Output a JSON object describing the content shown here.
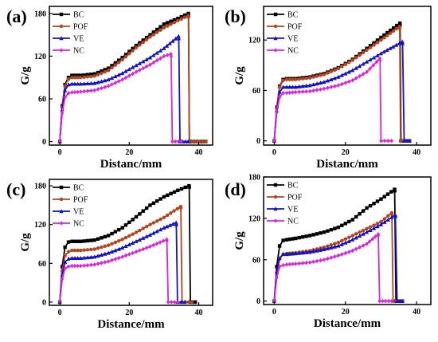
{
  "chart_data": [
    {
      "type": "line",
      "panel_label": "(a)",
      "xlabel": "Distanc/mm",
      "ylabel": "G/g",
      "xlim": [
        -3,
        44
      ],
      "ylim": [
        -5,
        190
      ],
      "xticks": [
        0,
        20,
        40
      ],
      "yticks": [
        0,
        60,
        120,
        180
      ],
      "grid": false,
      "legend_position": "top-right",
      "series": [
        {
          "name": "BC",
          "color": "#000000",
          "marker": "square",
          "x": [
            0,
            0.7,
            1.5,
            2.5,
            3.5,
            6,
            10,
            14,
            18,
            22,
            26,
            30,
            34,
            37.0,
            37.05,
            37.3,
            42
          ],
          "y": [
            0,
            50,
            80,
            90,
            93,
            93,
            95,
            103,
            118,
            135,
            150,
            165,
            173,
            180,
            178,
            0,
            0
          ]
        },
        {
          "name": "POF",
          "color": "#b5441c",
          "marker": "circle",
          "x": [
            0,
            0.7,
            1.5,
            2.5,
            3.5,
            6,
            10,
            14,
            18,
            22,
            26,
            30,
            34,
            37.0,
            37.05,
            37.3,
            42
          ],
          "y": [
            0,
            48,
            78,
            88,
            90,
            90,
            92,
            100,
            115,
            132,
            147,
            160,
            170,
            177,
            175,
            0,
            0
          ]
        },
        {
          "name": "VE",
          "color": "#1111cc",
          "marker": "triangle",
          "x": [
            0,
            0.7,
            1.5,
            2.5,
            3.5,
            6,
            10,
            14,
            18,
            22,
            26,
            30,
            34.2,
            34.25,
            34.6,
            37
          ],
          "y": [
            0,
            45,
            72,
            80,
            81,
            81,
            82,
            87,
            96,
            107,
            118,
            131,
            148,
            145,
            0,
            0
          ]
        },
        {
          "name": "NC",
          "color": "#dd22dd",
          "marker": "diamond",
          "x": [
            0,
            0.7,
            1.5,
            2.5,
            3.5,
            6,
            10,
            14,
            18,
            22,
            26,
            30,
            32.0,
            32.05,
            32.4,
            35
          ],
          "y": [
            0,
            40,
            62,
            68,
            69,
            70,
            72,
            78,
            87,
            98,
            108,
            120,
            123,
            120,
            0,
            0
          ]
        }
      ]
    },
    {
      "type": "line",
      "panel_label": "(b)",
      "xlabel": "Distanc/mm",
      "ylabel": "G/g",
      "xlim": [
        -3,
        44
      ],
      "ylim": [
        -5,
        160
      ],
      "xticks": [
        0,
        20,
        40
      ],
      "yticks": [
        0,
        60,
        120
      ],
      "grid": false,
      "legend_position": "top-right",
      "series": [
        {
          "name": "BC",
          "color": "#000000",
          "marker": "square",
          "x": [
            0,
            0.7,
            1.5,
            2.5,
            3.5,
            6,
            10,
            14,
            18,
            22,
            26,
            30,
            35.3,
            35.35,
            35.6,
            38
          ],
          "y": [
            0,
            40,
            65,
            73,
            74,
            74,
            76,
            80,
            87,
            97,
            110,
            123,
            140,
            138,
            0,
            0
          ]
        },
        {
          "name": "POF",
          "color": "#b5441c",
          "marker": "circle",
          "x": [
            0,
            0.7,
            1.5,
            2.5,
            3.5,
            6,
            10,
            14,
            18,
            22,
            26,
            30,
            35.2,
            35.25,
            35.5,
            38
          ],
          "y": [
            0,
            40,
            64,
            72,
            73,
            73,
            75,
            79,
            86,
            96,
            108,
            120,
            136,
            134,
            0,
            0
          ]
        },
        {
          "name": "VE",
          "color": "#1111cc",
          "marker": "triangle",
          "x": [
            0,
            0.7,
            1.5,
            2.5,
            3.5,
            6,
            10,
            14,
            18,
            22,
            26,
            30,
            36.0,
            36.05,
            36.5,
            38
          ],
          "y": [
            0,
            36,
            58,
            64,
            64,
            64,
            66,
            70,
            76,
            84,
            94,
            104,
            118,
            116,
            0,
            0
          ]
        },
        {
          "name": "NC",
          "color": "#dd22dd",
          "marker": "diamond",
          "x": [
            0,
            0.7,
            1.5,
            2.5,
            3.5,
            6,
            10,
            14,
            18,
            22,
            26,
            29.7,
            29.75,
            30.0,
            33
          ],
          "y": [
            0,
            34,
            52,
            57,
            57,
            58,
            59,
            62,
            66,
            72,
            82,
            98,
            96,
            0,
            0
          ]
        }
      ]
    },
    {
      "type": "line",
      "panel_label": "(c)",
      "xlabel": "Distance/mm",
      "ylabel": "G/g",
      "xlim": [
        -3,
        44
      ],
      "ylim": [
        -5,
        190
      ],
      "xticks": [
        0,
        20,
        40
      ],
      "yticks": [
        0,
        60,
        120,
        180
      ],
      "grid": false,
      "legend_position": "top-right",
      "series": [
        {
          "name": "BC",
          "color": "#000000",
          "marker": "square",
          "x": [
            0,
            0.7,
            1.5,
            2.5,
            3.5,
            6,
            10,
            14,
            18,
            22,
            26,
            30,
            34,
            37.2,
            37.25,
            37.6,
            39
          ],
          "y": [
            0,
            55,
            85,
            93,
            94,
            94,
            96,
            103,
            115,
            132,
            150,
            163,
            173,
            180,
            178,
            0,
            0
          ]
        },
        {
          "name": "POF",
          "color": "#b5441c",
          "marker": "circle",
          "x": [
            0,
            0.7,
            1.5,
            2.5,
            3.5,
            6,
            10,
            14,
            18,
            22,
            26,
            30,
            34.8,
            34.85,
            35.2,
            38
          ],
          "y": [
            0,
            48,
            72,
            78,
            80,
            80,
            82,
            88,
            97,
            108,
            120,
            131,
            148,
            146,
            0,
            0
          ]
        },
        {
          "name": "VE",
          "color": "#1111cc",
          "marker": "triangle",
          "x": [
            0,
            0.7,
            1.5,
            2.5,
            3.5,
            6,
            10,
            14,
            18,
            22,
            26,
            30,
            33.5,
            33.55,
            33.9,
            36
          ],
          "y": [
            0,
            42,
            62,
            67,
            68,
            68,
            70,
            76,
            84,
            94,
            104,
            115,
            123,
            120,
            0,
            0
          ]
        },
        {
          "name": "NC",
          "color": "#dd22dd",
          "marker": "diamond",
          "x": [
            0,
            0.7,
            1.5,
            2.5,
            3.5,
            6,
            10,
            14,
            18,
            22,
            26,
            30.8,
            30.85,
            31.2,
            34
          ],
          "y": [
            0,
            36,
            52,
            55,
            56,
            56,
            58,
            63,
            70,
            78,
            86,
            97,
            95,
            0,
            0
          ]
        }
      ]
    },
    {
      "type": "line",
      "panel_label": "(d)",
      "xlabel": "Distance/mm",
      "ylabel": "G/g",
      "xlim": [
        -3,
        44
      ],
      "ylim": [
        -5,
        180
      ],
      "xticks": [
        0,
        20,
        40
      ],
      "yticks": [
        0,
        60,
        120,
        180
      ],
      "grid": false,
      "legend_position": "top-left",
      "series": [
        {
          "name": "BC",
          "color": "#000000",
          "marker": "square",
          "x": [
            0,
            0.7,
            1.5,
            2.5,
            3.5,
            6,
            10,
            14,
            18,
            22,
            26,
            30,
            33.8,
            33.85,
            34.2,
            36
          ],
          "y": [
            0,
            50,
            80,
            88,
            89,
            91,
            95,
            100,
            107,
            118,
            135,
            148,
            162,
            160,
            0,
            0
          ]
        },
        {
          "name": "POF",
          "color": "#b5441c",
          "marker": "circle",
          "x": [
            0,
            0.7,
            1.5,
            2.5,
            3.5,
            6,
            10,
            14,
            18,
            22,
            26,
            30,
            33.0,
            33.05,
            33.4,
            36
          ],
          "y": [
            0,
            42,
            62,
            68,
            69,
            70,
            73,
            78,
            85,
            95,
            105,
            115,
            128,
            126,
            0,
            0
          ]
        },
        {
          "name": "VE",
          "color": "#1111cc",
          "marker": "triangle",
          "x": [
            0,
            0.7,
            1.5,
            2.5,
            3.5,
            6,
            10,
            14,
            18,
            22,
            26,
            30,
            34.0,
            34.05,
            34.5,
            36
          ],
          "y": [
            0,
            42,
            62,
            68,
            68,
            69,
            71,
            75,
            80,
            89,
            100,
            111,
            125,
            123,
            0,
            0
          ]
        },
        {
          "name": "NC",
          "color": "#dd22dd",
          "marker": "diamond",
          "x": [
            0,
            0.7,
            1.5,
            2.5,
            3.5,
            6,
            10,
            14,
            18,
            22,
            26,
            29.2,
            29.25,
            29.6,
            33
          ],
          "y": [
            0,
            34,
            50,
            52,
            53,
            54,
            56,
            60,
            66,
            73,
            83,
            97,
            95,
            0,
            0
          ]
        }
      ]
    }
  ]
}
